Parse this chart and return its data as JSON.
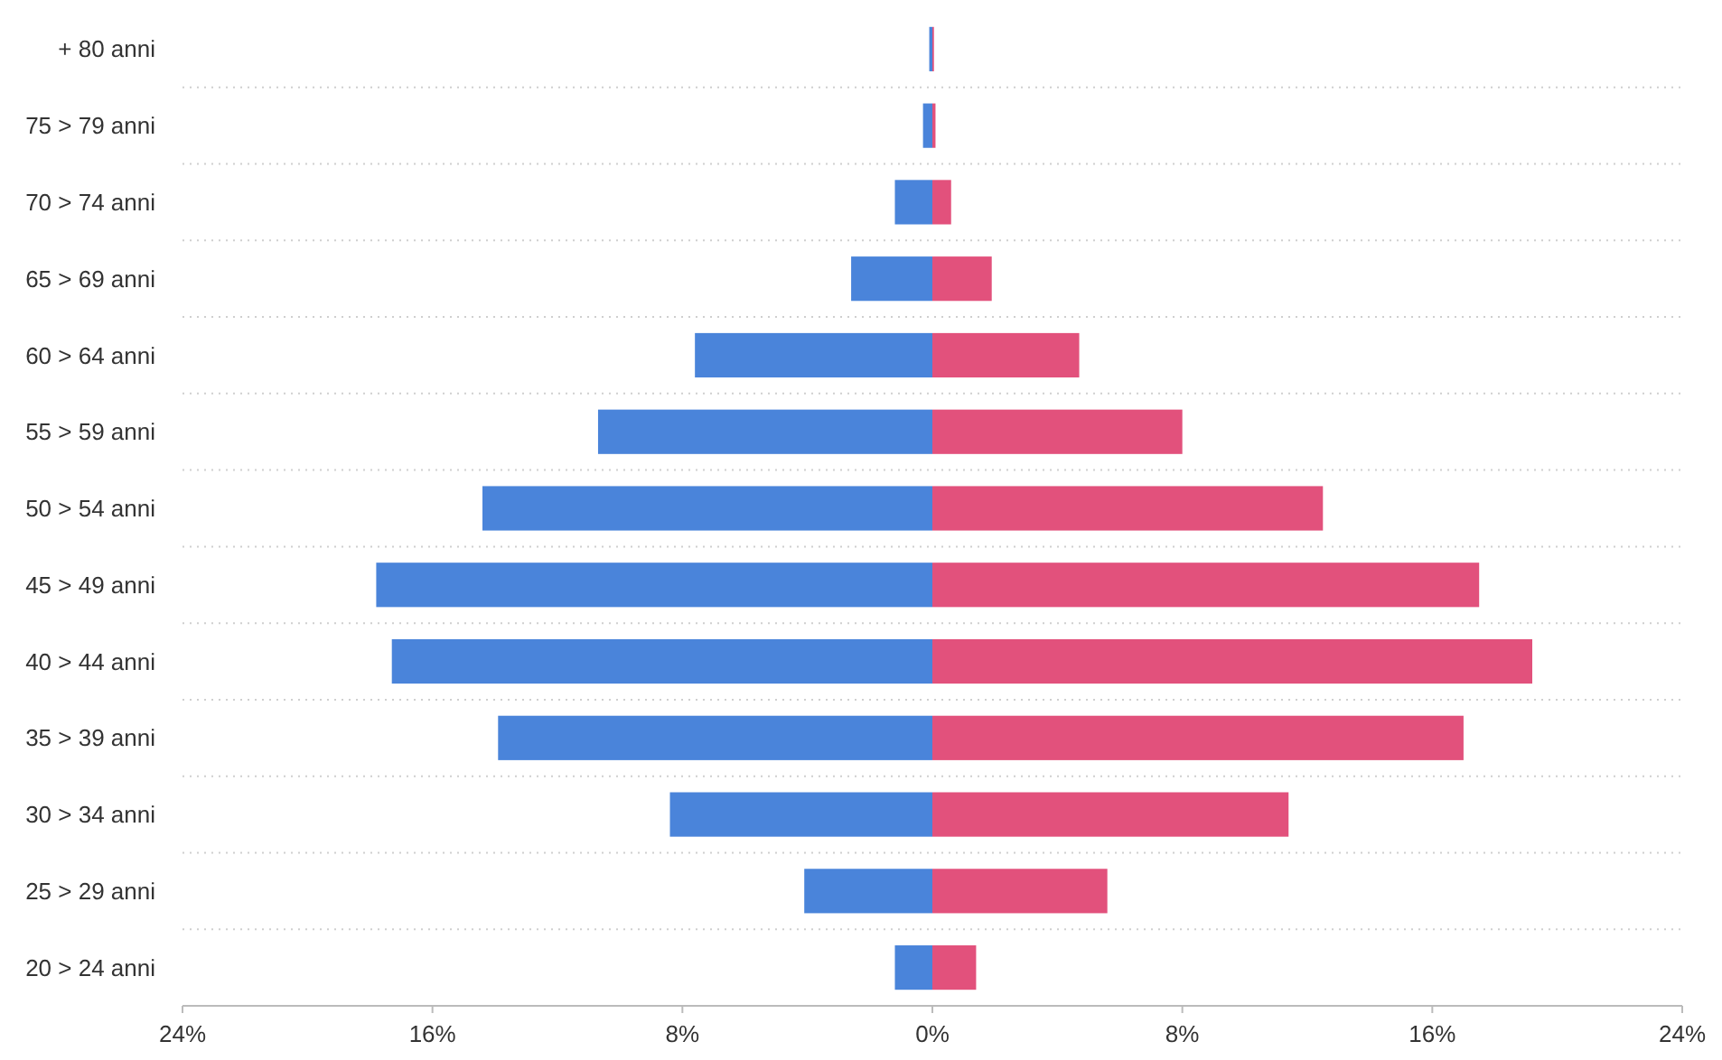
{
  "chart_data": {
    "type": "bar",
    "orientation": "horizontal",
    "stacked": true,
    "grid": "y",
    "categories": [
      "+ 80 anni",
      "75 > 79 anni",
      "70 > 74 anni",
      "65 > 69 anni",
      "60 > 64 anni",
      "55 > 59 anni",
      "50 > 54 anni",
      "45 > 49 anni",
      "40 > 44 anni",
      "35 > 39 anni",
      "30 > 34 anni",
      "25 > 29 anni",
      "20 > 24 anni"
    ],
    "series": [
      {
        "color": "#4a84da",
        "values": [
          -0.1,
          -0.3,
          -1.2,
          -2.6,
          -7.6,
          -10.7,
          -14.4,
          -17.8,
          -17.3,
          -13.9,
          -8.4,
          -4.1,
          -1.2
        ]
      },
      {
        "color": "#e2517c",
        "values": [
          0.05,
          0.1,
          0.6,
          1.9,
          4.7,
          8.0,
          12.5,
          17.5,
          19.2,
          17.0,
          11.4,
          5.6,
          1.4
        ]
      }
    ],
    "xlim": [
      -24,
      24
    ],
    "xticks": [
      {
        "value": -24,
        "label": "24%"
      },
      {
        "value": -16,
        "label": "16%"
      },
      {
        "value": -8,
        "label": "8%"
      },
      {
        "value": 0,
        "label": "0%"
      },
      {
        "value": 8,
        "label": "8%"
      },
      {
        "value": 16,
        "label": "16%"
      },
      {
        "value": 24,
        "label": "24%"
      }
    ]
  }
}
